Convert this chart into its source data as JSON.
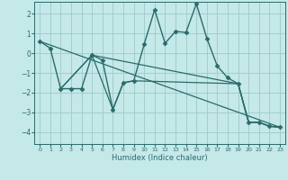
{
  "xlabel": "Humidex (Indice chaleur)",
  "xlim": [
    -0.5,
    23.5
  ],
  "ylim": [
    -4.6,
    2.6
  ],
  "yticks": [
    -4,
    -3,
    -2,
    -1,
    0,
    1,
    2
  ],
  "xticks": [
    0,
    1,
    2,
    3,
    4,
    5,
    6,
    7,
    8,
    9,
    10,
    11,
    12,
    13,
    14,
    15,
    16,
    17,
    18,
    19,
    20,
    21,
    22,
    23
  ],
  "bg_color": "#c5e8e8",
  "grid_color": "#9dcaca",
  "line_color": "#2a6b6b",
  "series": [
    {
      "x": [
        0,
        1,
        2,
        3,
        4,
        5,
        6,
        7,
        8,
        9,
        10,
        11,
        12,
        13,
        14,
        15,
        16,
        17,
        18,
        19,
        20,
        21,
        22,
        23
      ],
      "y": [
        0.6,
        0.25,
        -1.8,
        -1.8,
        -1.8,
        -0.1,
        -0.35,
        -2.85,
        -1.5,
        -1.4,
        0.45,
        2.2,
        0.5,
        1.1,
        1.05,
        2.5,
        0.75,
        -0.65,
        -1.25,
        -1.55,
        -3.5,
        -3.5,
        -3.7,
        -3.75
      ],
      "marker": "D",
      "markersize": 2.5,
      "linewidth": 1.0
    },
    {
      "x": [
        0,
        23
      ],
      "y": [
        0.6,
        -3.75
      ],
      "marker": null,
      "markersize": 0,
      "linewidth": 0.9
    },
    {
      "x": [
        2,
        5,
        7,
        8,
        9,
        19,
        20,
        21,
        22,
        23
      ],
      "y": [
        -1.8,
        -0.1,
        -2.85,
        -1.5,
        -1.4,
        -1.55,
        -3.5,
        -3.5,
        -3.7,
        -3.75
      ],
      "marker": null,
      "markersize": 0,
      "linewidth": 0.9
    },
    {
      "x": [
        2,
        5,
        19,
        20,
        21,
        22,
        23
      ],
      "y": [
        -1.8,
        -0.1,
        -1.55,
        -3.5,
        -3.5,
        -3.7,
        -3.75
      ],
      "marker": null,
      "markersize": 0,
      "linewidth": 0.9
    }
  ]
}
